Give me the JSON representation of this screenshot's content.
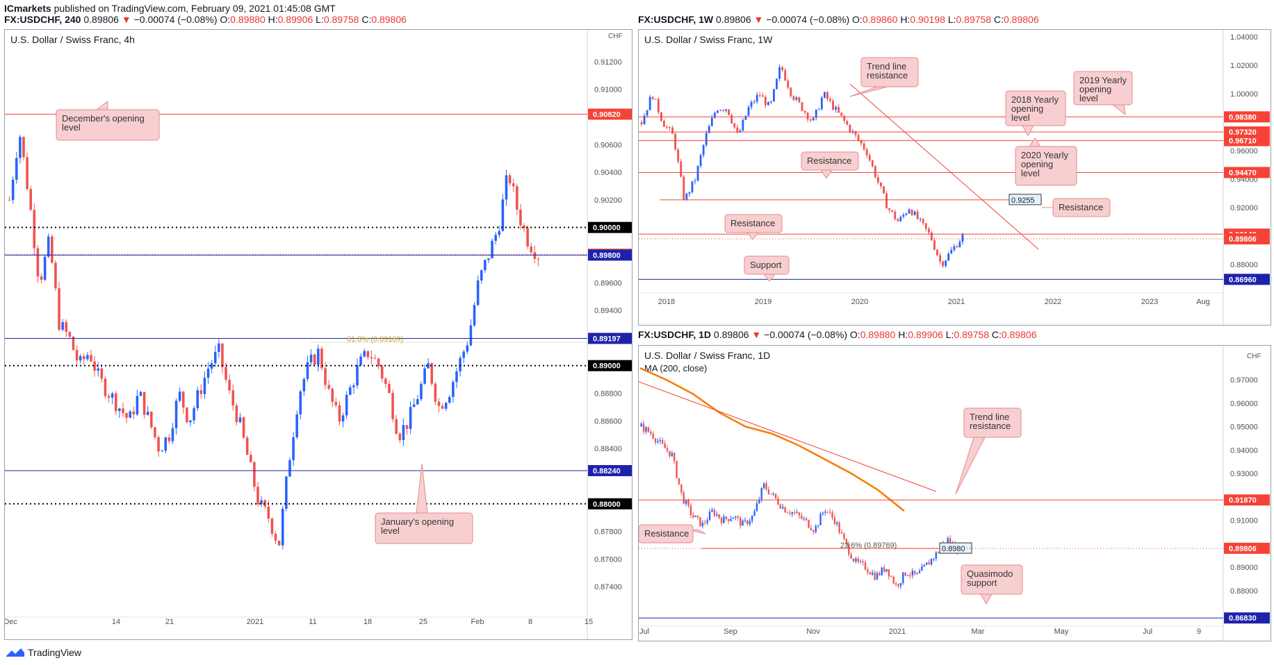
{
  "publisher": {
    "name": "ICmarkets",
    "text": "published on TradingView.com, February 09, 2021 01:45:08 GMT"
  },
  "headers": {
    "left": {
      "symbol": "FX:USDCHF, 240",
      "last": "0.89806",
      "change": "−0.00074 (−0.08%)",
      "o": "0.89880",
      "h": "0.89906",
      "l": "0.89758",
      "c": "0.89806"
    },
    "topright": {
      "symbol": "FX:USDCHF, 1W",
      "last": "0.89806",
      "change": "−0.00074 (−0.08%)",
      "o": "0.89860",
      "h": "0.90198",
      "l": "0.89758",
      "c": "0.89806"
    },
    "bottomright": {
      "symbol": "FX:USDCHF, 1D",
      "last": "0.89806",
      "change": "−0.00074 (−0.08%)",
      "o": "0.89880",
      "h": "0.89906",
      "l": "0.89758",
      "c": "0.89806"
    }
  },
  "labels": {
    "o": "O:",
    "h": "H:",
    "l": "L:",
    "c": "C:"
  },
  "brand": "TradingView",
  "colors": {
    "up": "#2962ff",
    "down": "#ef5350",
    "hline_red": "#f44336",
    "hline_blue": "#1e22aa",
    "ma": "#f57c00",
    "callout_bg": "#f8cfd0",
    "callout_border": "#e58a8d"
  },
  "chart_data": [
    {
      "type": "candlestick",
      "title": "U.S. Dollar / Swiss Franc, 4h",
      "currency": "CHF",
      "ylim": [
        0.872,
        0.9138
      ],
      "y_ticks": [
        0.912,
        0.91,
        0.906,
        0.904,
        0.902,
        0.896,
        0.894,
        0.888,
        0.886,
        0.884,
        0.878,
        0.876,
        0.874
      ],
      "x_ticks": [
        "Dec",
        "14",
        "21",
        "2021",
        "11",
        "18",
        "25",
        "Feb",
        "8",
        "15"
      ],
      "price_path": [
        0.902,
        0.907,
        0.902,
        0.896,
        0.899,
        0.893,
        0.892,
        0.89,
        0.891,
        0.889,
        0.888,
        0.887,
        0.886,
        0.888,
        0.886,
        0.884,
        0.885,
        0.888,
        0.886,
        0.888,
        0.89,
        0.891,
        0.888,
        0.886,
        0.883,
        0.88,
        0.879,
        0.877,
        0.883,
        0.888,
        0.89,
        0.891,
        0.888,
        0.886,
        0.888,
        0.89,
        0.891,
        0.89,
        0.888,
        0.885,
        0.886,
        0.888,
        0.89,
        0.887,
        0.888,
        0.89,
        0.892,
        0.896,
        0.898,
        0.9,
        0.904,
        0.901,
        0.899,
        0.898
      ],
      "hlines": [
        {
          "value": 0.9082,
          "label": "0.90820",
          "color": "red",
          "style": "solid"
        },
        {
          "value": 0.9,
          "label": "0.90000",
          "color": "black",
          "style": "dotted"
        },
        {
          "value": 0.89806,
          "label": "0.89806",
          "color": "red",
          "style": "price"
        },
        {
          "value": 0.898,
          "label": "0.89800",
          "color": "blue",
          "style": "solid"
        },
        {
          "value": 0.89197,
          "label": "0.89197",
          "color": "blue",
          "style": "solid"
        },
        {
          "value": 0.89,
          "label": "0.89000",
          "color": "black",
          "style": "dotted"
        },
        {
          "value": 0.8824,
          "label": "0.88240",
          "color": "blue",
          "style": "solid"
        },
        {
          "value": 0.88,
          "label": "0.88000",
          "color": "black",
          "style": "dotted"
        }
      ],
      "fib": {
        "label": "61.8% (0.89169)",
        "value": 0.89169
      },
      "annotations": [
        "December's opening level",
        "January's opening level"
      ]
    },
    {
      "type": "candlestick",
      "title": "U.S. Dollar / Swiss Franc, 1W",
      "ylim": [
        0.862,
        1.044
      ],
      "y_ticks": [
        1.04,
        1.02,
        1.0,
        0.96,
        0.94,
        0.92,
        0.88
      ],
      "x_ticks": [
        "2018",
        "2019",
        "2020",
        "2021",
        "2022",
        "2023",
        "Aug"
      ],
      "price_path": [
        0.98,
        1.0,
        0.98,
        0.97,
        0.925,
        0.94,
        0.97,
        0.99,
        0.99,
        0.97,
        0.99,
        1.0,
        0.99,
        1.02,
        1.0,
        0.99,
        0.98,
        1.0,
        0.99,
        0.98,
        0.97,
        0.96,
        0.94,
        0.92,
        0.91,
        0.92,
        0.91,
        0.9,
        0.88,
        0.89,
        0.9
      ],
      "hlines": [
        {
          "value": 0.9838,
          "label": "0.98380",
          "color": "red",
          "style": "solid"
        },
        {
          "value": 0.9732,
          "label": "0.97320",
          "color": "red",
          "style": "solid"
        },
        {
          "value": 0.9671,
          "label": "0.96710",
          "color": "red",
          "style": "solid"
        },
        {
          "value": 0.9447,
          "label": "0.94470",
          "color": "red",
          "style": "solid"
        },
        {
          "value": 0.9255,
          "label": "0.9255",
          "color": "red",
          "style": "tag"
        },
        {
          "value": 0.9014,
          "label": "0.90140",
          "color": "red",
          "style": "solid"
        },
        {
          "value": 0.89806,
          "label": "0.89806",
          "color": "red",
          "style": "price"
        },
        {
          "value": 0.8696,
          "label": "0.86960",
          "color": "blue",
          "style": "solid"
        }
      ],
      "annotations": [
        "Trend line resistance",
        "2018 Yearly opening level",
        "2019 Yearly opening level",
        "2020 Yearly opening level",
        "Resistance",
        "Resistance",
        "Resistance",
        "Support"
      ]
    },
    {
      "type": "candlestick",
      "title": "U.S. Dollar / Swiss Franc, 1D",
      "subtitle": "MA (200, close)",
      "currency": "CHF",
      "ylim": [
        0.866,
        0.984
      ],
      "y_ticks": [
        0.97,
        0.96,
        0.95,
        0.94,
        0.93,
        0.92,
        0.91,
        0.89,
        0.88
      ],
      "x_ticks": [
        "Jul",
        "Sep",
        "Nov",
        "2021",
        "Mar",
        "May",
        "Jul",
        "9"
      ],
      "price_path": [
        0.95,
        0.947,
        0.942,
        0.938,
        0.92,
        0.912,
        0.908,
        0.914,
        0.91,
        0.912,
        0.908,
        0.912,
        0.925,
        0.92,
        0.915,
        0.913,
        0.91,
        0.906,
        0.915,
        0.91,
        0.9,
        0.892,
        0.89,
        0.886,
        0.89,
        0.882,
        0.888,
        0.886,
        0.891,
        0.896,
        0.902,
        0.898
      ],
      "ma200": [
        0.975,
        0.97,
        0.964,
        0.956,
        0.95,
        0.947,
        0.942,
        0.936,
        0.93,
        0.923,
        0.914
      ],
      "hlines": [
        {
          "value": 0.9187,
          "label": "0.91870",
          "color": "red",
          "style": "solid"
        },
        {
          "value": 0.898,
          "label": "0.8980",
          "color": "red",
          "style": "tag"
        },
        {
          "value": 0.89806,
          "label": "0.89806",
          "color": "red",
          "style": "price"
        },
        {
          "value": 0.8683,
          "label": "0.86830",
          "color": "blue",
          "style": "solid"
        }
      ],
      "fib": {
        "label": "23.6% (0.89769)",
        "value": 0.89769
      },
      "annotations": [
        "Trend line resistance",
        "Resistance",
        "Quasimodo support"
      ]
    }
  ]
}
